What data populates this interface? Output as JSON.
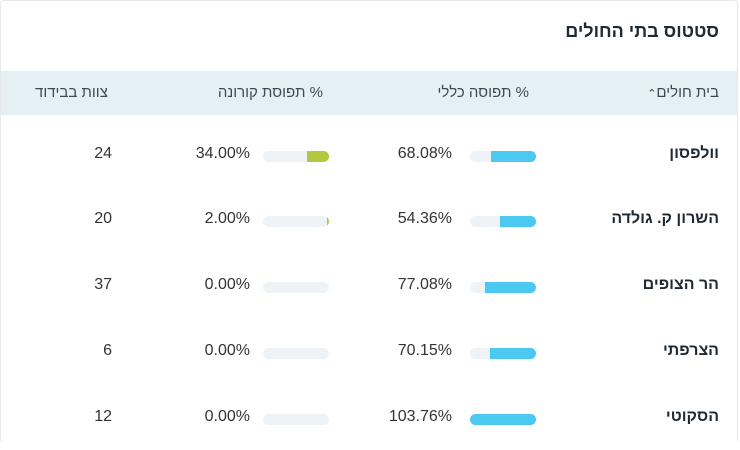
{
  "card": {
    "title": "סטטוס בתי החולים"
  },
  "columns": {
    "hospital": "בית חולים",
    "general": "% תפוסה כללי",
    "covid": "% תפוסת קורונה",
    "staff": "צוות בבידוד"
  },
  "icons": {
    "sort": "chevron-up-icon"
  },
  "colors": {
    "general_bar": "#4cc9f0",
    "covid_bar": "#b3c83e",
    "header_bg": "#e4f0f4"
  },
  "rows": [
    {
      "name": "וולפסון",
      "general": "68.08%",
      "general_level": 0.6808,
      "covid": "34.00%",
      "covid_level": 0.34,
      "staff": "24"
    },
    {
      "name": "השרון ק. גולדה",
      "general": "54.36%",
      "general_level": 0.5436,
      "covid": "2.00%",
      "covid_level": 0.02,
      "staff": "20"
    },
    {
      "name": "הר הצופים",
      "general": "77.08%",
      "general_level": 0.7708,
      "covid": "0.00%",
      "covid_level": 0.0,
      "staff": "37"
    },
    {
      "name": "הצרפתי",
      "general": "70.15%",
      "general_level": 0.7015,
      "covid": "0.00%",
      "covid_level": 0.0,
      "staff": "6"
    },
    {
      "name": "הסקוטי",
      "general": "103.76%",
      "general_level": 1.0376,
      "covid": "0.00%",
      "covid_level": 0.0,
      "staff": "12"
    }
  ]
}
